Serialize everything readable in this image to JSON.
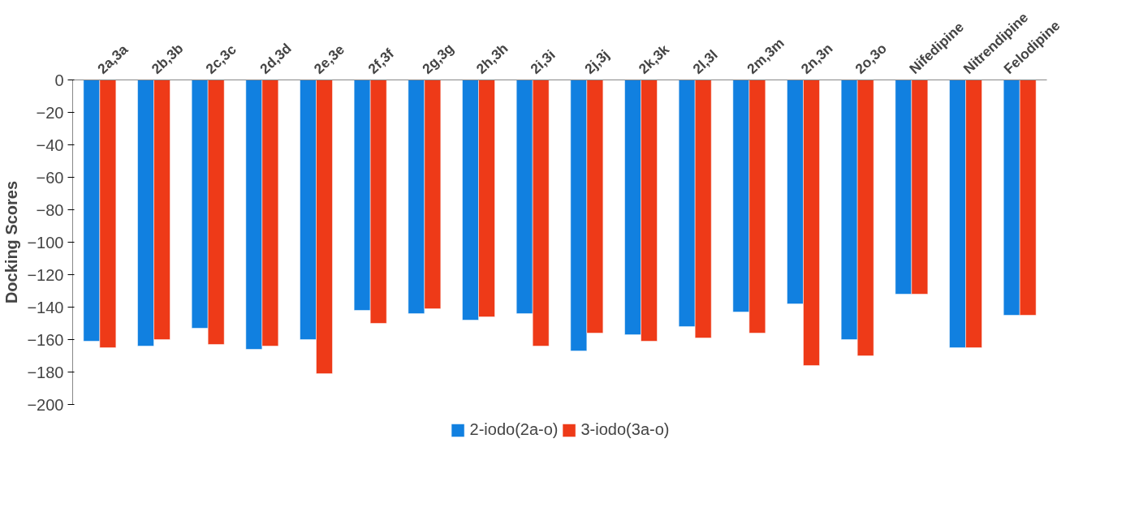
{
  "chart_data": {
    "type": "bar",
    "ylabel": "Docking Scores",
    "categories": [
      "2a,3a",
      "2b,3b",
      "2c,3c",
      "2d,3d",
      "2e,3e",
      "2f,3f",
      "2g,3g",
      "2h,3h",
      "2i,3i",
      "2j,3j",
      "2k,3k",
      "2l,3l",
      "2m,3m",
      "2n,3n",
      "2o,3o",
      "Nifedipine",
      "Nitrendipine",
      "Felodipine"
    ],
    "series": [
      {
        "name": "2-iodo(2a-o)",
        "color": "#1180e0",
        "values": [
          -161,
          -164,
          -153,
          -166,
          -160,
          -142,
          -144,
          -148,
          -144,
          -167,
          -157,
          -152,
          -143,
          -138,
          -160,
          -132,
          -165,
          -145
        ]
      },
      {
        "name": "3-iodo(3a-o)",
        "color": "#ee3a18",
        "values": [
          -165,
          -160,
          -163,
          -164,
          -181,
          -150,
          -141,
          -146,
          -164,
          -156,
          -161,
          -159,
          -156,
          -176,
          -170,
          -132,
          -165,
          -145
        ]
      }
    ],
    "ylim": [
      -200,
      0
    ],
    "yticks": [
      -200,
      -180,
      -160,
      -140,
      -120,
      -100,
      -80,
      -60,
      -40,
      -20,
      0
    ],
    "grid": false,
    "legend": "bottom"
  }
}
